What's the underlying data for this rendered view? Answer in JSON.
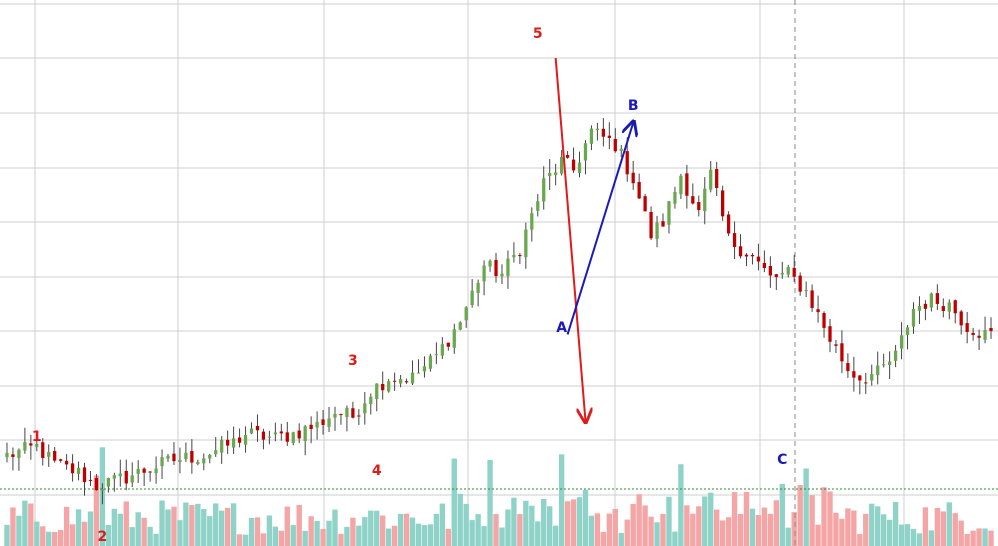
{
  "chart_data": {
    "type": "candlestick",
    "title": "",
    "xlabel": "",
    "ylabel": "",
    "grid": true,
    "colors": {
      "up": "#6aa84f",
      "down": "#c00000",
      "volume_up": "#8fd3c8",
      "volume_down": "#f4a6a6",
      "impulse_labels": "#e01b1b",
      "correction_labels": "#1a1ab8",
      "grid": "#cfcfcf"
    },
    "price_range": [
      0,
      100
    ],
    "volume_range": [
      0,
      100
    ],
    "candles": {
      "count": 166,
      "close_path": [
        [
          0,
          8
        ],
        [
          5,
          10
        ],
        [
          8,
          6
        ],
        [
          12,
          4
        ],
        [
          15,
          1
        ],
        [
          18,
          2
        ],
        [
          22,
          4
        ],
        [
          28,
          7
        ],
        [
          33,
          8
        ],
        [
          38,
          11
        ],
        [
          40,
          13
        ],
        [
          45,
          12
        ],
        [
          48,
          13
        ],
        [
          52,
          15
        ],
        [
          55,
          18
        ],
        [
          58,
          17
        ],
        [
          61,
          23
        ],
        [
          64,
          26
        ],
        [
          68,
          26
        ],
        [
          72,
          31
        ],
        [
          76,
          39
        ],
        [
          80,
          52
        ],
        [
          83,
          50
        ],
        [
          86,
          56
        ],
        [
          90,
          71
        ],
        [
          93,
          76
        ],
        [
          95,
          74
        ],
        [
          98,
          83
        ],
        [
          102,
          80
        ],
        [
          105,
          72
        ],
        [
          108,
          59
        ],
        [
          110,
          62
        ],
        [
          113,
          73
        ],
        [
          116,
          64
        ],
        [
          118,
          73
        ],
        [
          121,
          58
        ],
        [
          125,
          54
        ],
        [
          128,
          49
        ],
        [
          131,
          50
        ],
        [
          134,
          46
        ],
        [
          138,
          35
        ],
        [
          141,
          28
        ],
        [
          143,
          26
        ],
        [
          146,
          27
        ],
        [
          149,
          31
        ],
        [
          152,
          42
        ],
        [
          155,
          44
        ],
        [
          158,
          43
        ],
        [
          161,
          38
        ],
        [
          164,
          36
        ],
        [
          165,
          36
        ]
      ],
      "volatility": 2.4
    },
    "volume": {
      "count": 166,
      "spikes": [
        [
          16,
          70
        ],
        [
          15,
          50
        ],
        [
          75,
          62
        ],
        [
          81,
          61
        ],
        [
          93,
          65
        ],
        [
          113,
          58
        ],
        [
          130,
          44
        ],
        [
          134,
          55
        ],
        [
          62,
          25
        ],
        [
          0,
          15
        ],
        [
          145,
          30
        ]
      ]
    },
    "annotations": {
      "impulse": [
        {
          "label": "1",
          "index": 5,
          "position": "above"
        },
        {
          "label": "2",
          "index": 16,
          "position": "below"
        },
        {
          "label": "3",
          "index": 58,
          "position": "above"
        },
        {
          "label": "4",
          "index": 62,
          "position": "below"
        },
        {
          "label": "5",
          "index": 89,
          "position": "above"
        }
      ],
      "correction": [
        {
          "label": "A",
          "index": 93,
          "position": "below"
        },
        {
          "label": "B",
          "index": 105,
          "position": "above"
        },
        {
          "label": "C",
          "index": 130,
          "position": "below"
        }
      ],
      "arrows": [
        {
          "from_index": 92,
          "from_value": 100,
          "to_index": 97,
          "to_value": 16,
          "color": "red"
        },
        {
          "from_index": 94,
          "from_value": 36,
          "to_index": 105,
          "to_value": 85,
          "color": "blue"
        }
      ]
    }
  }
}
